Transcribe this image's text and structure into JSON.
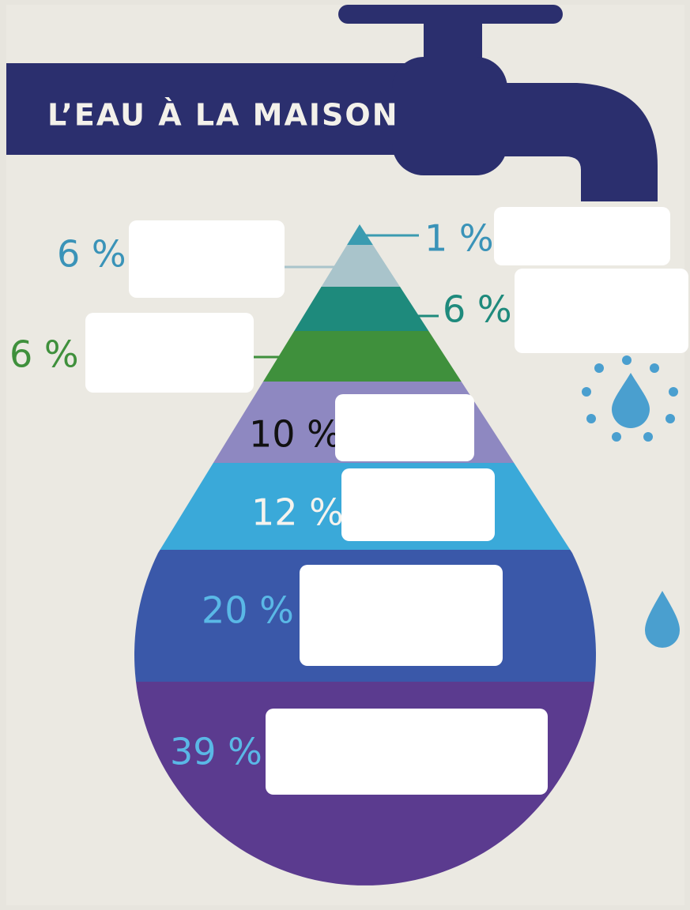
{
  "title": "L’EAU À LA MAISON",
  "segments": [
    {
      "label": "1 %"
    },
    {
      "label": "6 %"
    },
    {
      "label": "6 %"
    },
    {
      "label": "6 %"
    },
    {
      "label": "10 %"
    },
    {
      "label": "12 %"
    },
    {
      "label": "20 %"
    },
    {
      "label": "39 %"
    }
  ]
}
